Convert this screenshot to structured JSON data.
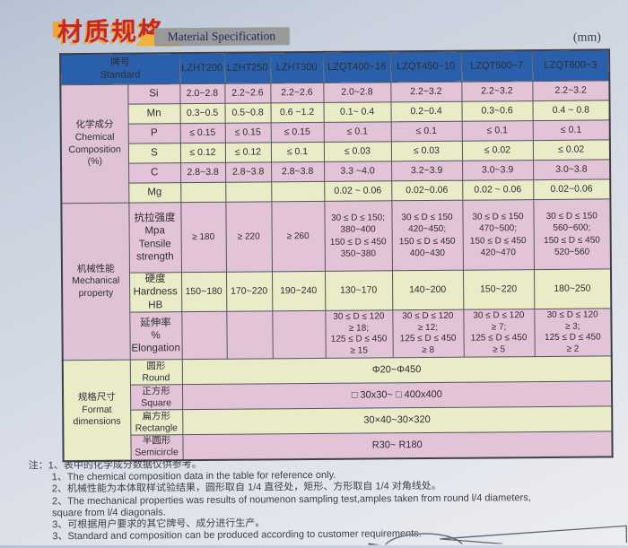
{
  "page": {
    "title_cn": "材质规格",
    "title_en": "Material Specification",
    "unit_label": "(mm)"
  },
  "colors": {
    "header_blue": "#2a60ab",
    "row_pink": "#e3c3d7",
    "row_green": "#e9ecc7",
    "title_red": "#c22730",
    "title_accent_orange": "#f0a436",
    "title_en_box_gray": "#9a9a9a"
  },
  "table": {
    "header": {
      "standard_cn": "牌号",
      "standard_en": "Standard",
      "grades": [
        "LZHT200",
        "LZHT250",
        "LZHT300",
        "LZQT400~18",
        "LZQT450~10",
        "LZQT500~7",
        "LZQT600~3"
      ]
    },
    "chem": {
      "category": "化学成分\nChemical\nComposition\n(%)",
      "rows": [
        {
          "label": "Si",
          "values": [
            "2.0~2.8",
            "2.2~2.6",
            "2.2~2.6",
            "2.0~2.8",
            "2.2~3.2",
            "2.2~3.2",
            "2.2~3.2"
          ]
        },
        {
          "label": "Mn",
          "values": [
            "0.3~0.5",
            "0.5~0.8",
            "0.6 ~1.2",
            "0.1~ 0.4",
            "0.2~0.4",
            "0.3~0.6",
            "0.4 ~ 0.8"
          ]
        },
        {
          "label": "P",
          "values": [
            "≤ 0.15",
            "≤ 0.15",
            "≤ 0.15",
            "≤ 0.1",
            "≤ 0.1",
            "≤ 0.1",
            "≤ 0.1"
          ]
        },
        {
          "label": "S",
          "values": [
            "≤ 0.12",
            "≤ 0.12",
            "≤ 0.1",
            "≤ 0.03",
            "≤ 0.03",
            "≤ 0.02",
            "≤ 0.02"
          ]
        },
        {
          "label": "C",
          "values": [
            "2.8~3.8",
            "2.8~3.8",
            "2.8~3.8",
            "3.3 ~4.0",
            "3.2~3.9",
            "3.0~3.9",
            "3.0~3.8"
          ]
        },
        {
          "label": "Mg",
          "values": [
            "",
            "",
            "",
            "0.02 ~ 0.06",
            "0.02~0.06",
            "0.02 ~ 0.06",
            "0.02~0.06"
          ]
        }
      ]
    },
    "mech": {
      "category": "机械性能\nMechanical\nproperty",
      "rows": [
        {
          "label": "抗拉强度\nMpa\nTensile\nstrength",
          "values": [
            "≥ 180",
            "≥ 220",
            "≥ 260",
            "30 ≤ D ≤ 150;\n380~400\n150 ≤ D ≤ 450\n350~380",
            "30 ≤ D ≤ 150\n420~450;\n150 ≤ D ≤ 450\n400~430",
            "30 ≤ D ≤ 150\n470~500;\n150 ≤ D ≤ 450\n420~470",
            "30 ≤ D ≤ 150\n560~600;\n150 ≤ D ≤ 450\n520~560"
          ]
        },
        {
          "label": "硬度\nHardness\nHB",
          "values": [
            "150~180",
            "170~220",
            "190~240",
            "130~170",
            "140~200",
            "150~220",
            "180~250"
          ]
        },
        {
          "label": "延伸率\n%\nElongation",
          "values": [
            "",
            "",
            "",
            "30 ≤ D ≤ 120\n≥ 18;\n125 ≤ D ≤ 450\n≥ 15",
            "30 ≤ D ≤ 120\n≥ 12;\n125 ≤ D ≤ 450\n≥ 8",
            "30 ≤ D ≤ 120\n≥ 7;\n125 ≤ D ≤ 450\n≥ 5",
            "30 ≤ D ≤ 120\n≥ 3;\n125 ≤ D ≤ 450\n≥ 2"
          ]
        }
      ]
    },
    "format": {
      "category": "规格尺寸\nFormat\ndimensions",
      "rows": [
        {
          "label_cn": "圆形",
          "label_en": "Round",
          "value": "Φ20~Φ450"
        },
        {
          "label_cn": "正方形",
          "label_en": "Square",
          "value": "□ 30x30~ □ 400x400"
        },
        {
          "label_cn": "扁方形",
          "label_en": "Rectangle",
          "value": "30×40~30×320"
        },
        {
          "label_cn": "半圆形",
          "label_en": "Semicircle",
          "value": "R30~ R180"
        }
      ]
    }
  },
  "footnotes": [
    {
      "indent": false,
      "text": "注：1、表中的化学成分数据仅供参考。"
    },
    {
      "indent": true,
      "text": "1、The chemical composition data in the table for reference only."
    },
    {
      "indent": true,
      "text": "2、机械性能为本体取样试验结果，圆形取自 1/4 直径处，矩形、方形取自 1/4 对角线处。"
    },
    {
      "indent": true,
      "text": "2、The mechanical properties was results of noumenon sampling test,amples taken from round l/4 diameters,"
    },
    {
      "indent": true,
      "text": "square from l/4 diagonals."
    },
    {
      "indent": true,
      "text": "3、可根据用户要求的其它牌号、成分进行生产。"
    },
    {
      "indent": true,
      "text": "3、Standard and composition can be produced according to customer requirements."
    }
  ]
}
